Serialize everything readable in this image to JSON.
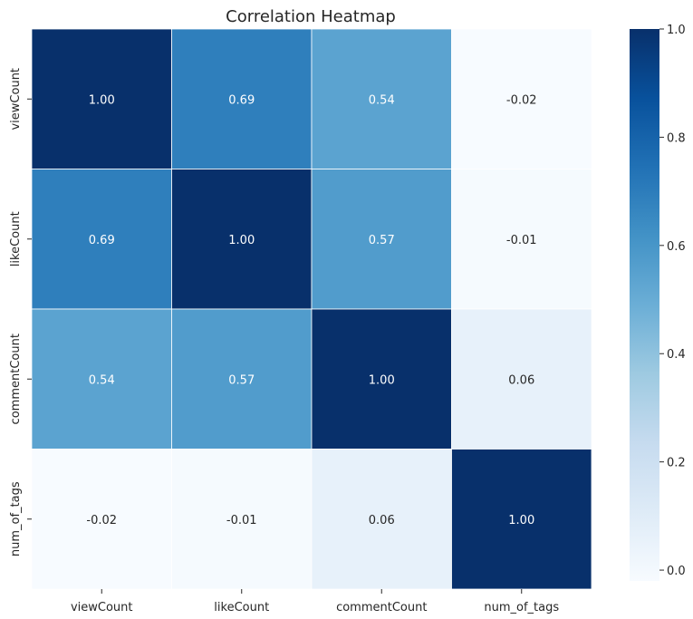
{
  "chart_data": {
    "type": "heatmap",
    "title": "Correlation Heatmap",
    "rows": [
      "viewCount",
      "likeCount",
      "commentCount",
      "num_of_tags"
    ],
    "columns": [
      "viewCount",
      "likeCount",
      "commentCount",
      "num_of_tags"
    ],
    "values": [
      [
        1.0,
        0.69,
        0.54,
        -0.02
      ],
      [
        0.69,
        1.0,
        0.57,
        -0.01
      ],
      [
        0.54,
        0.57,
        1.0,
        0.06
      ],
      [
        -0.02,
        -0.01,
        0.06,
        1.0
      ]
    ],
    "annotation_format": "0.00",
    "colormap": "Blues",
    "colors": {
      "low": "#f7fbff",
      "high": "#08306b",
      "annot_dark_text": "#ffffff",
      "annot_light_text": "#262626",
      "cell_border": "#ffffff"
    },
    "colorbar": {
      "range": [
        -0.02,
        1.0
      ],
      "ticks": [
        0.0,
        0.2,
        0.4,
        0.6,
        0.8,
        1.0
      ],
      "tick_labels": [
        "0.0",
        "0.2",
        "0.4",
        "0.6",
        "0.8",
        "1.0"
      ]
    },
    "grid": false,
    "legend": "colorbar-right"
  }
}
